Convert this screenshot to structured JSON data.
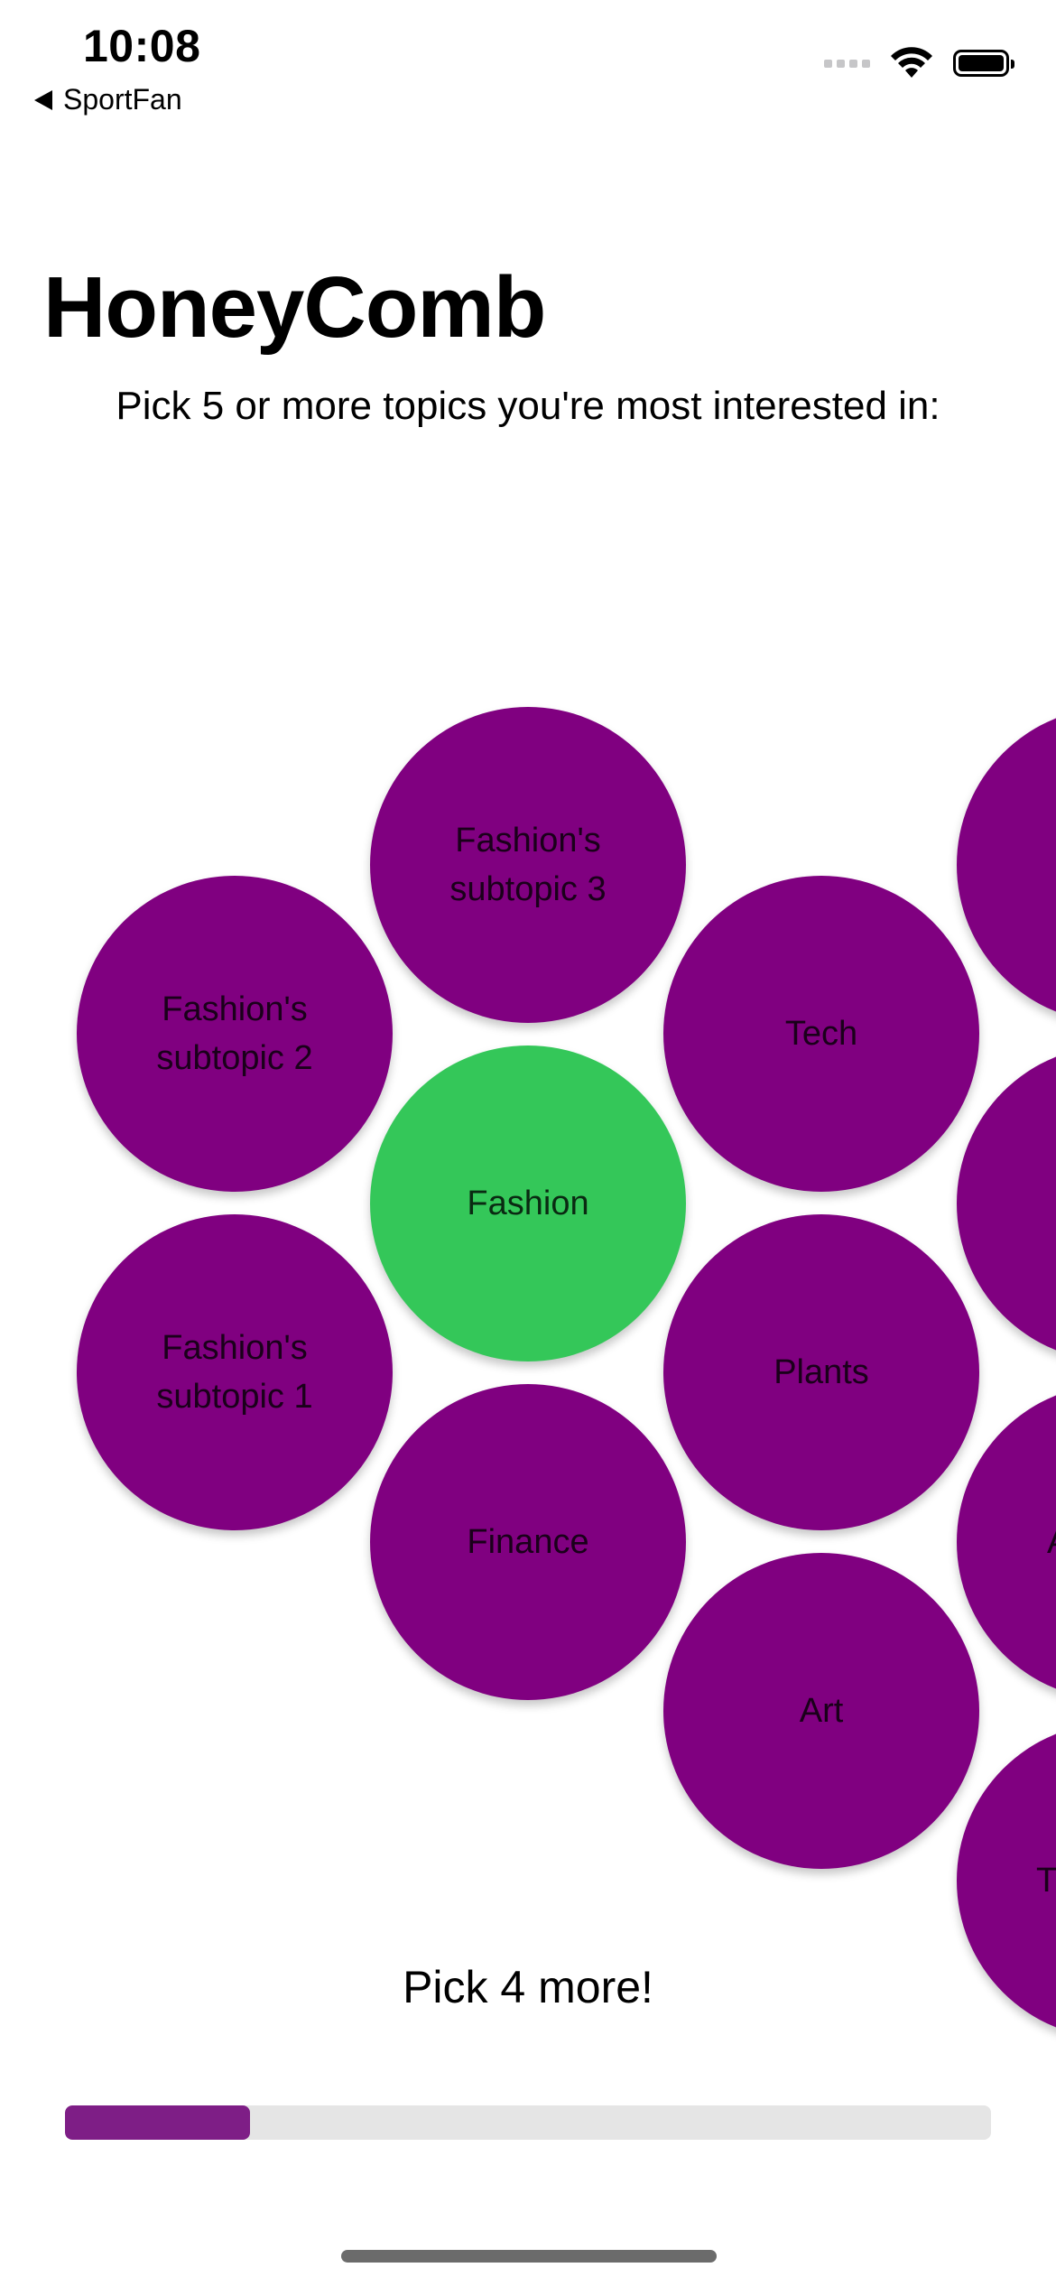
{
  "status_bar": {
    "time": "10:08",
    "back_app": "SportFan",
    "icons": [
      "cellular-signal-icon",
      "wifi-icon",
      "battery-icon"
    ]
  },
  "header": {
    "title": "HoneyComb",
    "subtitle": "Pick 5 or more topics you're most interested in:"
  },
  "colors": {
    "bubble": "#800080",
    "selected_bubble": "#34c759",
    "progress_fill": "#7e1e86",
    "progress_track": "#e5e5e5"
  },
  "topics": [
    {
      "label": "Fashion's\nsubtopic 3",
      "selected": false
    },
    {
      "label": "Fashion's\nsubtopic 2",
      "selected": false
    },
    {
      "label": "Fashion",
      "selected": true
    },
    {
      "label": "Tech",
      "selected": false
    },
    {
      "label": "Fashion's\nsubtopic 1",
      "selected": false
    },
    {
      "label": "Plants",
      "selected": false
    },
    {
      "label": "Finance",
      "selected": false
    },
    {
      "label": "Art",
      "selected": false
    }
  ],
  "edge_topics": [
    {
      "label": "",
      "selected": false
    },
    {
      "label": "",
      "selected": false
    },
    {
      "label": "A",
      "selected": false
    },
    {
      "label": "T",
      "selected": false
    }
  ],
  "footer": {
    "prompt": "Pick 4 more!",
    "progress": 0.2
  }
}
